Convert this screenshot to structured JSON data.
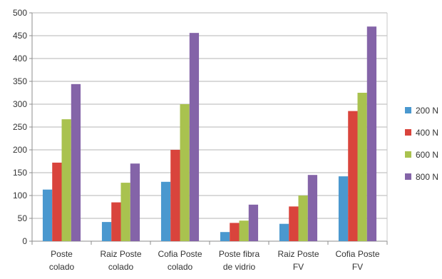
{
  "chart_data": {
    "type": "bar",
    "categories": [
      "Poste colado",
      "Raiz Poste colado",
      "Cofia Poste colado",
      "Poste fibra de vidrio",
      "Raiz Poste FV",
      "Cofia Poste FV"
    ],
    "category_lines": [
      [
        "Poste",
        "colado"
      ],
      [
        "Raiz Poste",
        "colado"
      ],
      [
        "Cofia Poste",
        "colado"
      ],
      [
        "Poste fibra",
        "de vidrio"
      ],
      [
        "Raiz Poste",
        "FV"
      ],
      [
        "Cofia Poste",
        "FV"
      ]
    ],
    "series": [
      {
        "name": "200 N",
        "color": "#4a98cf",
        "values": [
          113,
          42,
          130,
          20,
          38,
          142
        ]
      },
      {
        "name": "400 N",
        "color": "#d9443c",
        "values": [
          172,
          85,
          200,
          40,
          76,
          285
        ]
      },
      {
        "name": "600 N",
        "color": "#a9c24f",
        "values": [
          267,
          128,
          300,
          45,
          100,
          325
        ]
      },
      {
        "name": "800 N",
        "color": "#8464a8",
        "values": [
          344,
          170,
          456,
          80,
          145,
          470
        ]
      }
    ],
    "title": "",
    "xlabel": "",
    "ylabel": "",
    "ylim": [
      0,
      500
    ],
    "yticks": [
      0,
      50,
      100,
      150,
      200,
      250,
      300,
      350,
      400,
      450,
      500
    ],
    "grid": true,
    "legend_position": "right"
  }
}
